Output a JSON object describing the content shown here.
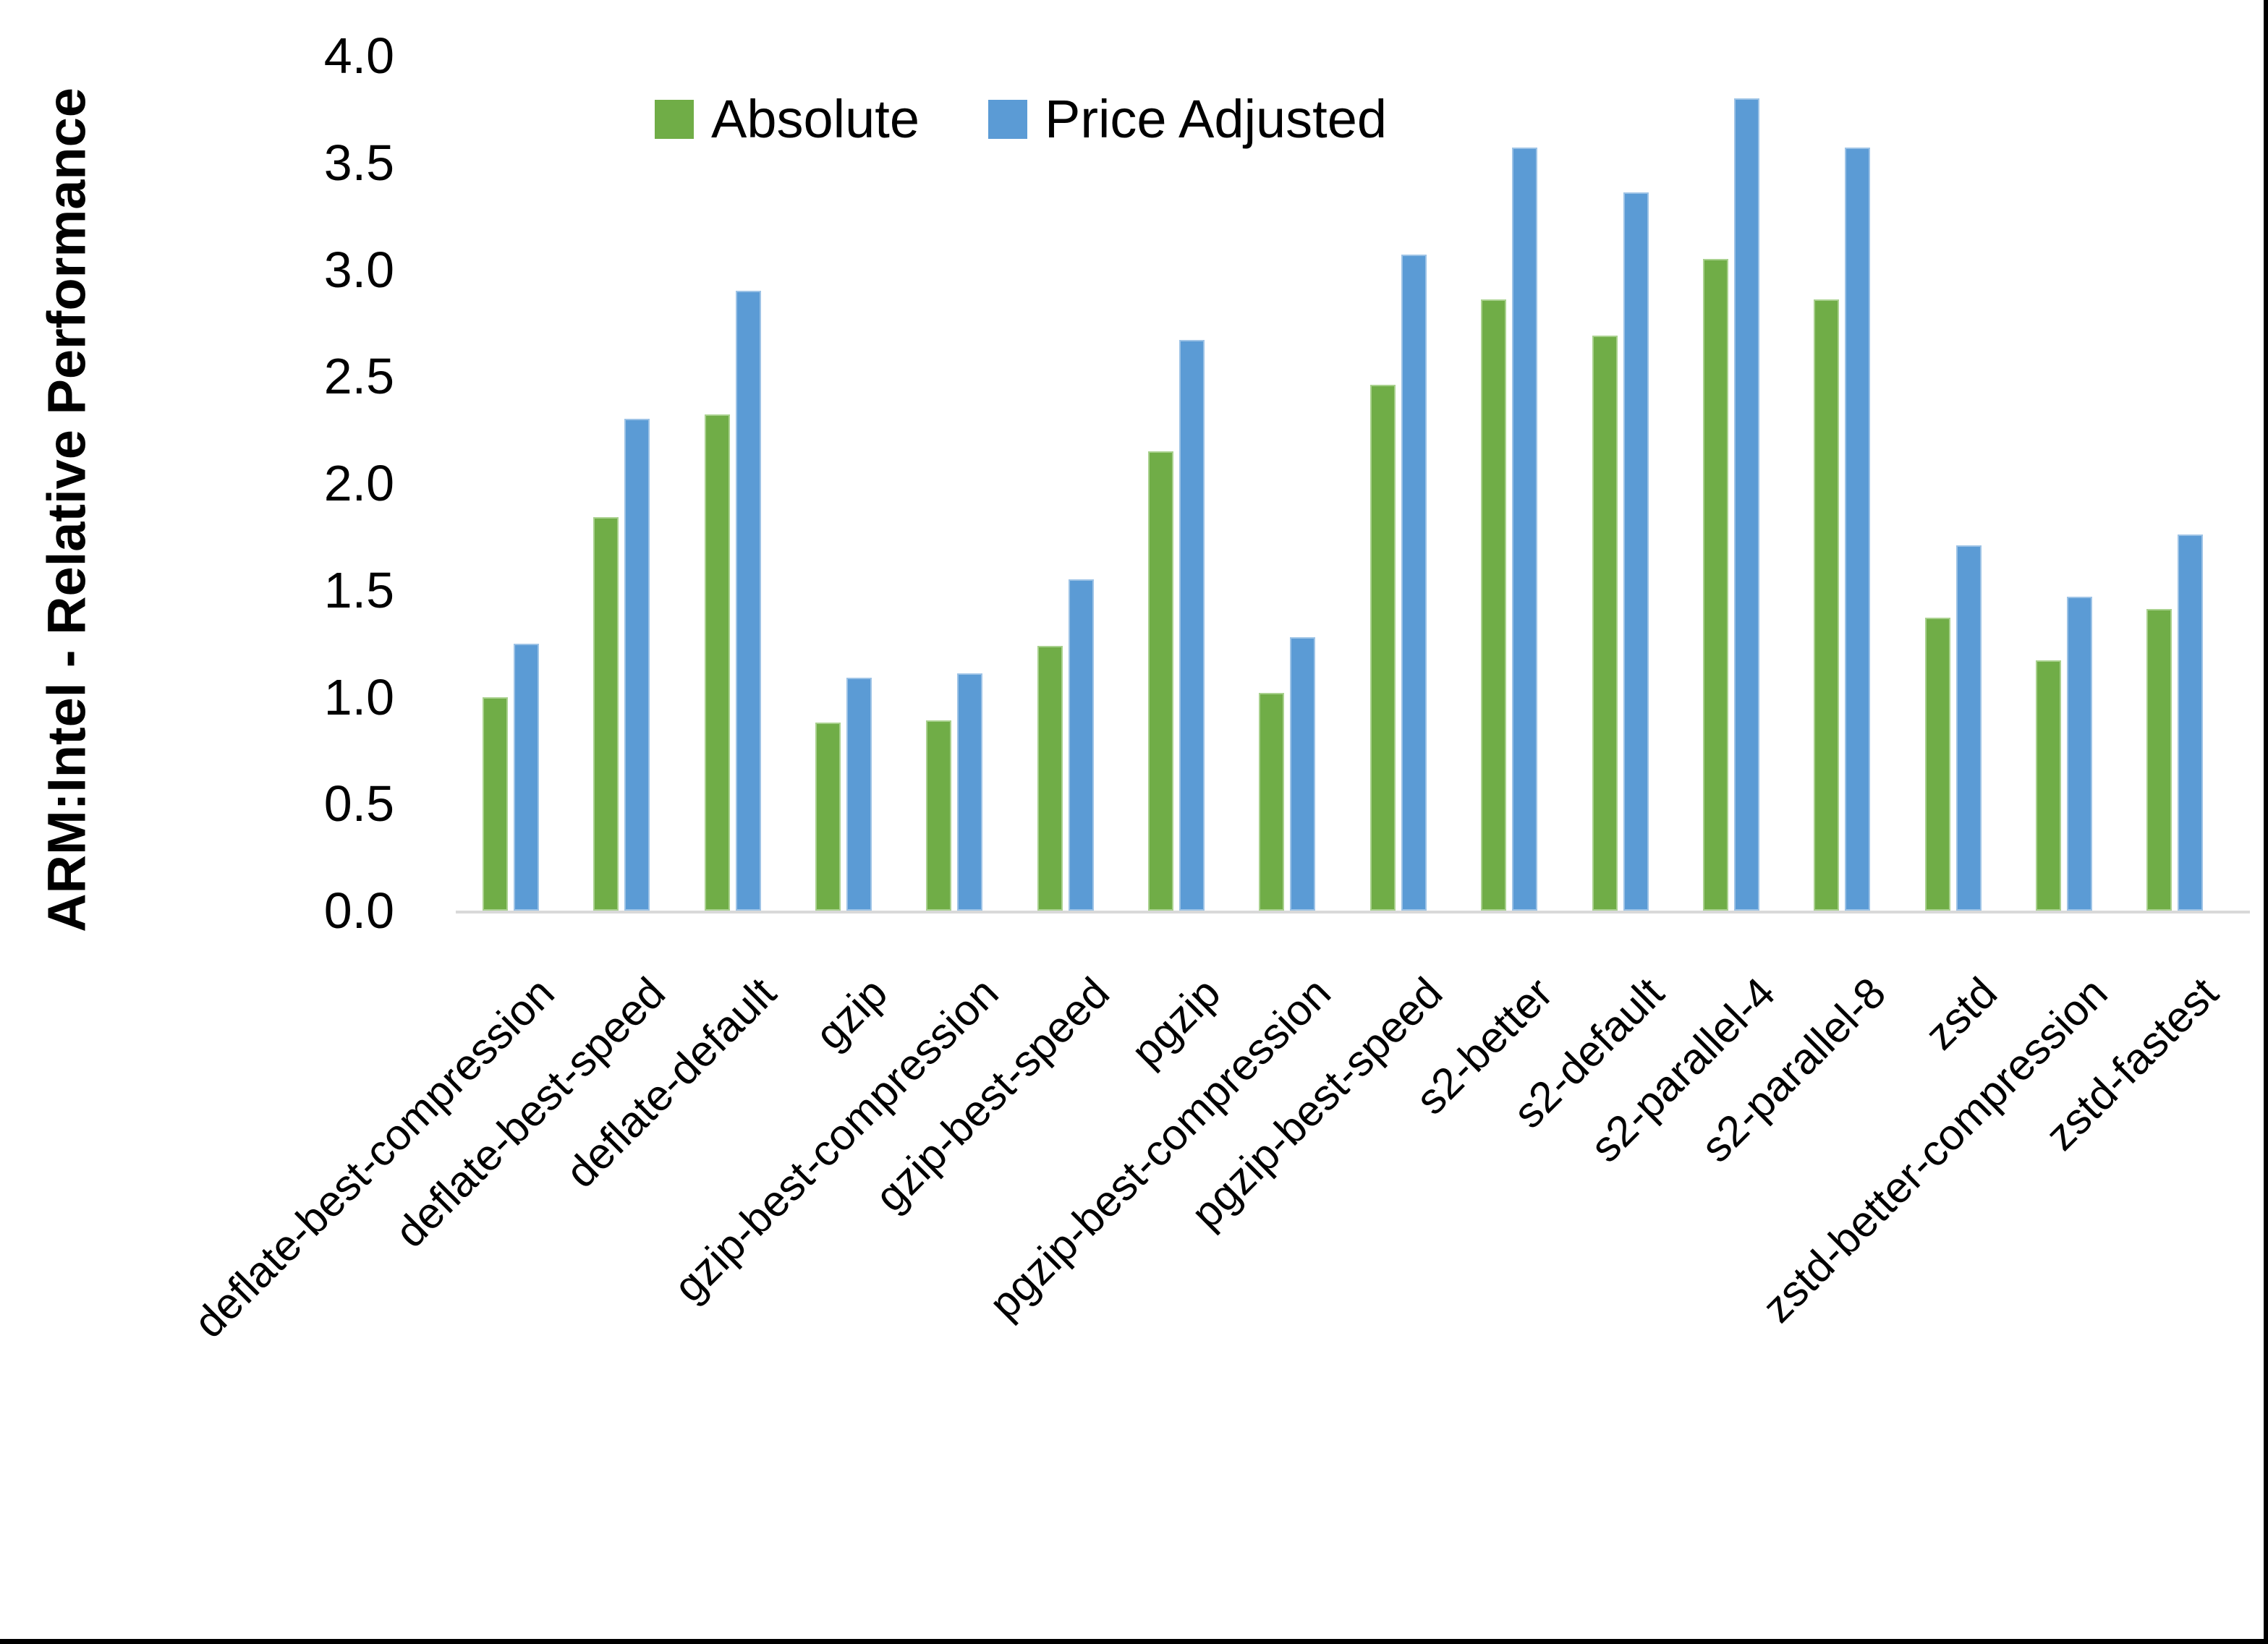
{
  "chart_data": {
    "type": "bar",
    "title": "",
    "ylabel": "ARM:Intel - Relative Performance",
    "xlabel": "",
    "ylim": [
      0.0,
      4.0
    ],
    "ytick_step": 0.5,
    "ytick_labels": [
      "0.0",
      "0.5",
      "1.0",
      "1.5",
      "2.0",
      "2.5",
      "3.0",
      "3.5",
      "4.0"
    ],
    "grid": false,
    "legend_position": "top",
    "categories": [
      "deflate-best-compression",
      "deflate-best-speed",
      "deflate-default",
      "gzip",
      "gzip-best-compression",
      "gzip-best-speed",
      "pgzip",
      "pgzip-best-compression",
      "pgzip-best-speed",
      "s2-better",
      "s2-default",
      "s2-parallel-4",
      "s2-parallel-8",
      "zstd",
      "zstd-better-compression",
      "zstd-fastest"
    ],
    "series": [
      {
        "name": "Absolute",
        "color": "#70AD47",
        "border_color": "#A9D18E",
        "values": [
          1.0,
          1.84,
          2.32,
          0.88,
          0.89,
          1.24,
          2.15,
          1.02,
          2.46,
          2.86,
          2.69,
          3.05,
          2.86,
          1.37,
          1.17,
          1.41
        ]
      },
      {
        "name": "Price Adjusted",
        "color": "#5B9BD5",
        "border_color": "#9DC3E6",
        "values": [
          1.25,
          2.3,
          2.9,
          1.09,
          1.11,
          1.55,
          2.67,
          1.28,
          3.07,
          3.57,
          3.36,
          3.8,
          3.57,
          1.71,
          1.47,
          1.76
        ]
      }
    ]
  },
  "colors": {
    "axis_line": "#D9D9D9",
    "text": "#000000",
    "frame_edge": "#000000"
  }
}
